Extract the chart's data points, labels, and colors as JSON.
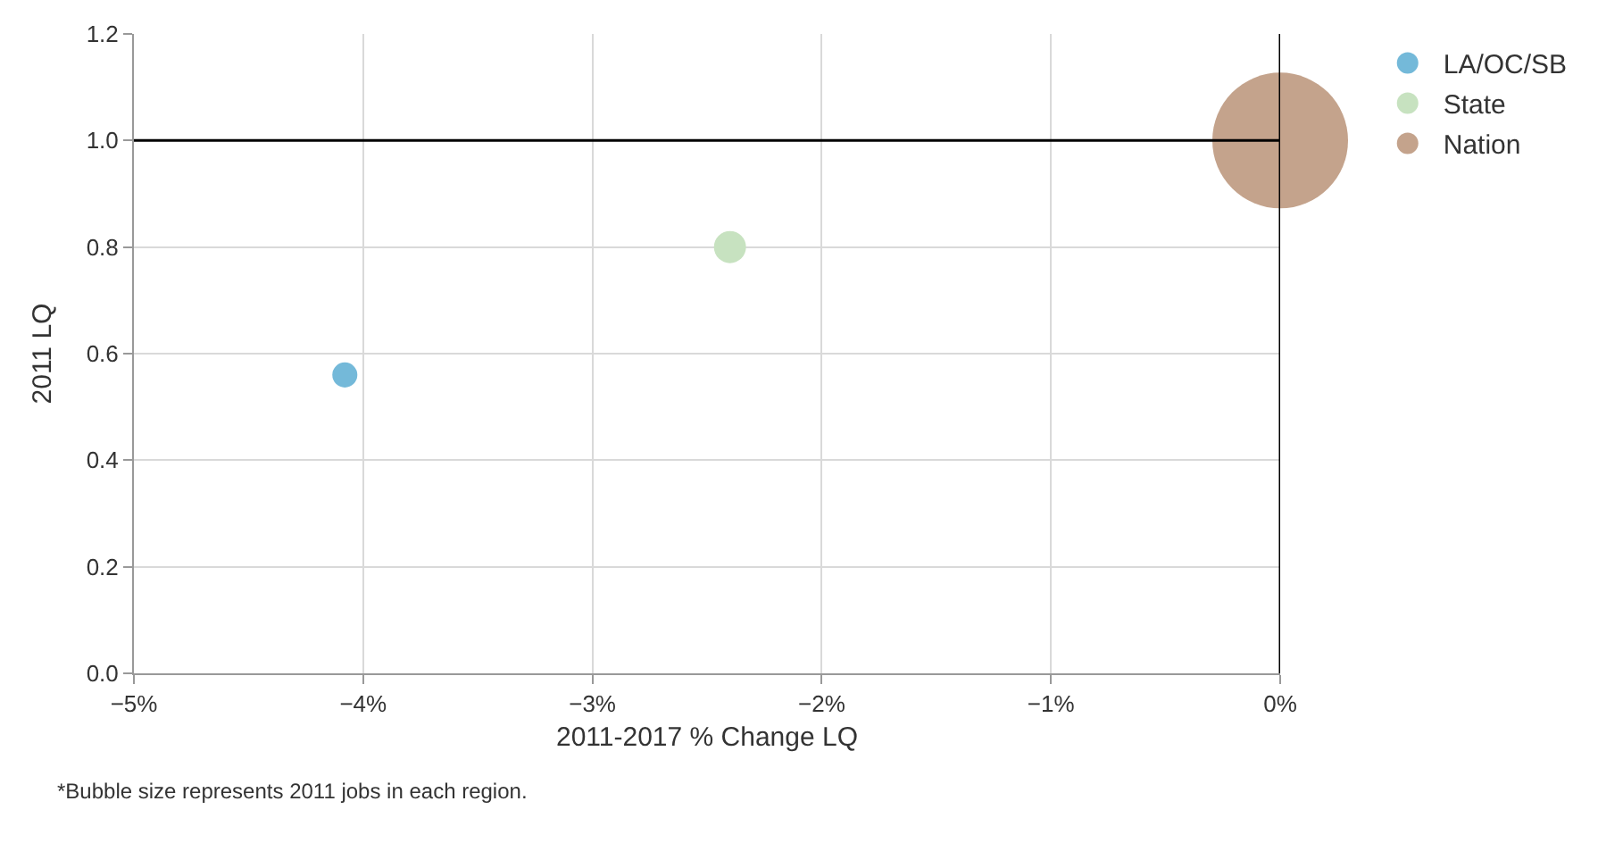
{
  "chart_data": {
    "type": "bubble",
    "xlabel": "2011-2017 % Change LQ",
    "ylabel": "2011 LQ",
    "series": [
      {
        "name": "LA/OC/SB",
        "color": "#74b9d9",
        "x": [
          -4.08
        ],
        "values": [
          0.56
        ],
        "sizes": [
          0.034
        ]
      },
      {
        "name": "State",
        "color": "#c7e2c0",
        "x": [
          -2.4
        ],
        "values": [
          0.8
        ],
        "sizes": [
          0.056
        ]
      },
      {
        "name": "Nation",
        "color": "#c4a38c",
        "x": [
          0
        ],
        "values": [
          1.0
        ],
        "sizes": [
          1
        ]
      }
    ],
    "xlim": [
      -5,
      0
    ],
    "xticks": [
      {
        "value": -5,
        "label": "−5%"
      },
      {
        "value": -4,
        "label": "−4%"
      },
      {
        "value": -3,
        "label": "−3%"
      },
      {
        "value": -2,
        "label": "−2%"
      },
      {
        "value": -1,
        "label": "−1%"
      },
      {
        "value": 0,
        "label": "0%"
      }
    ],
    "ylim": [
      0,
      1.2
    ],
    "yticks": [
      {
        "value": 0,
        "label": "0.0"
      },
      0.2,
      0.4,
      0.6,
      0.8,
      {
        "value": 1,
        "label": "1.0"
      },
      1.2
    ],
    "ref_lines": [
      {
        "axis": "y",
        "value": 1.0,
        "color": "#000000"
      },
      {
        "axis": "x",
        "value": 0,
        "color": "#000000"
      }
    ],
    "grid": true,
    "legend": "top right",
    "annotations": [
      "*Bubble size represents 2011 jobs in each region."
    ]
  }
}
